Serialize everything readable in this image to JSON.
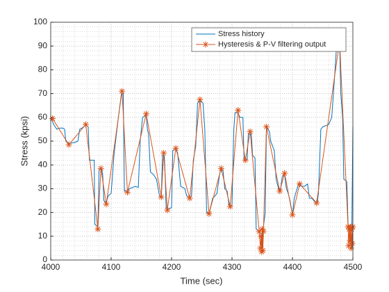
{
  "chart_data": {
    "type": "line",
    "xlabel": "Time (sec)",
    "ylabel": "Stress (kpsi)",
    "xlim": [
      4000,
      4500
    ],
    "xticks": [
      4000,
      4100,
      4200,
      4300,
      4400,
      4500
    ],
    "ylim": [
      0,
      100
    ],
    "yticks": [
      0,
      10,
      20,
      30,
      40,
      50,
      60,
      70,
      80,
      90,
      100
    ],
    "grid": true,
    "minor_grid": true,
    "legend": "top-right",
    "series": [
      {
        "name": "Stress history",
        "color": "#0072bd",
        "marker": "none",
        "x": [
          4000,
          4005,
          4010,
          4015,
          4020,
          4023,
          4025,
          4030,
          4040,
          4045,
          4048,
          4055,
          4058,
          4062,
          4064,
          4072,
          4073,
          4078,
          4080,
          4084,
          4086,
          4088,
          4092,
          4095,
          4100,
          4105,
          4112,
          4117,
          4120,
          4122,
          4127,
          4130,
          4140,
          4145,
          4148,
          4152,
          4158,
          4160,
          4162,
          4165,
          4170,
          4175,
          4180,
          4183,
          4185,
          4188,
          4189,
          4191,
          4195,
          4200,
          4202,
          4207,
          4210,
          4215,
          4222,
          4225,
          4230,
          4233,
          4236,
          4240,
          4243,
          4247,
          4252,
          4255,
          4258,
          4262,
          4268,
          4272,
          4275,
          4280,
          4285,
          4288,
          4292,
          4295,
          4300,
          4303,
          4305,
          4310,
          4313,
          4318,
          4320,
          4325,
          4327,
          4332,
          4334,
          4338,
          4340,
          4345,
          4348,
          4350,
          4352,
          4355,
          4357,
          4362,
          4364,
          4367,
          4370,
          4373,
          4377,
          4380,
          4383,
          4387,
          4390,
          4393,
          4396,
          4400,
          4403,
          4410,
          4415,
          4420,
          4425,
          4428,
          4432,
          4437,
          4441,
          4443,
          4447,
          4450,
          4460,
          4465,
          4470,
          4473,
          4478,
          4480,
          4483,
          4485,
          4490,
          4492,
          4495,
          4498,
          4500
        ],
        "values": [
          60,
          57,
          55,
          55.5,
          55.5,
          55,
          50,
          49,
          49.5,
          50,
          55,
          56,
          57,
          56,
          42,
          42,
          15,
          14,
          38,
          38.5,
          36,
          25,
          24,
          27,
          28,
          45,
          60,
          70,
          70,
          29,
          29,
          30,
          31,
          30.5,
          50,
          60,
          61,
          55,
          53,
          37,
          36,
          34,
          27,
          26.5,
          44,
          44,
          38,
          22,
          21.5,
          22,
          46,
          47,
          45,
          31,
          30,
          27,
          26,
          27,
          42,
          48,
          66,
          67,
          66,
          55,
          20,
          19.5,
          26,
          27,
          28,
          37,
          38,
          30,
          29,
          23,
          23,
          55,
          62,
          62,
          60,
          60,
          42,
          42,
          53,
          53,
          44,
          43,
          13,
          12,
          11,
          5,
          14,
          20,
          56,
          54,
          50,
          48,
          46,
          34,
          30,
          29,
          35,
          36,
          30,
          28,
          25,
          19,
          26,
          32,
          31,
          31,
          32,
          26,
          26,
          24.5,
          24,
          28,
          55,
          56,
          57,
          60,
          78,
          90,
          92,
          70,
          60,
          34,
          33,
          15,
          10,
          5,
          56
        ]
      },
      {
        "name": "Hysteresis & P-V filtering output",
        "color": "#d95319",
        "marker": "asterisk",
        "x": [
          4003,
          4030,
          4058,
          4078,
          4083,
          4092,
          4118,
          4127,
          4158,
          4183,
          4187,
          4193,
          4207,
          4230,
          4247,
          4262,
          4282,
          4297,
          4310,
          4322,
          4330,
          4345,
          4347,
          4348,
          4349,
          4350,
          4351,
          4352,
          4357,
          4379,
          4387,
          4400,
          4412,
          4440,
          4478,
          4492,
          4493,
          4494,
          4495,
          4496,
          4497,
          4498,
          4499,
          4500
        ],
        "values": [
          59.5,
          48.5,
          57,
          13,
          38.5,
          23.5,
          71,
          28.5,
          61.5,
          26.5,
          45,
          21,
          47,
          26,
          67.5,
          19.5,
          38.5,
          22.5,
          63,
          42,
          54,
          12,
          5,
          10,
          3.5,
          13,
          4,
          12,
          56,
          29,
          36.5,
          19,
          32,
          24,
          92,
          14,
          6,
          13,
          8,
          14,
          5,
          13,
          7,
          14
        ]
      }
    ]
  }
}
